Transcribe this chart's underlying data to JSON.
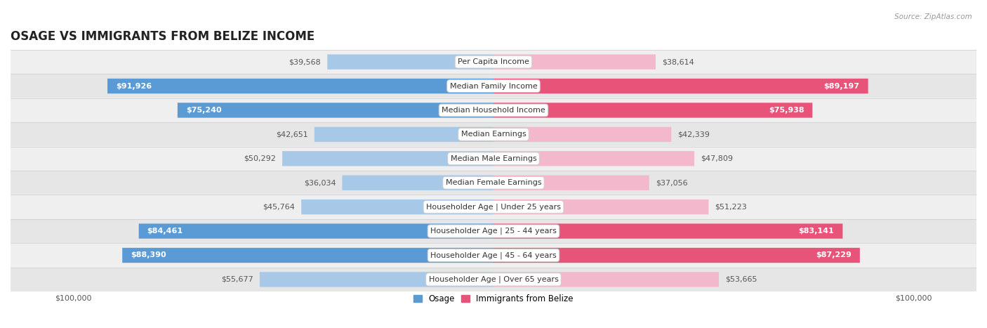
{
  "title": "OSAGE VS IMMIGRANTS FROM BELIZE INCOME",
  "source": "Source: ZipAtlas.com",
  "categories": [
    "Per Capita Income",
    "Median Family Income",
    "Median Household Income",
    "Median Earnings",
    "Median Male Earnings",
    "Median Female Earnings",
    "Householder Age | Under 25 years",
    "Householder Age | 25 - 44 years",
    "Householder Age | 45 - 64 years",
    "Householder Age | Over 65 years"
  ],
  "osage_values": [
    39568,
    91926,
    75240,
    42651,
    50292,
    36034,
    45764,
    84461,
    88390,
    55677
  ],
  "belize_values": [
    38614,
    89197,
    75938,
    42339,
    47809,
    37056,
    51223,
    83141,
    87229,
    53665
  ],
  "max_value": 100000,
  "osage_color_light": "#a8c8e8",
  "osage_color_dark": "#5b9bd5",
  "belize_color_light": "#f4b8cc",
  "belize_color_dark": "#e8537a",
  "bar_height": 0.62,
  "row_bg_odd": "#efefef",
  "row_bg_even": "#e6e6e6",
  "label_color_inside": "#ffffff",
  "label_color_outside": "#555555",
  "title_fontsize": 12,
  "label_fontsize": 8,
  "category_fontsize": 8,
  "legend_fontsize": 8.5,
  "axis_label_fontsize": 8,
  "osage_label": "Osage",
  "belize_label": "Immigrants from Belize",
  "threshold": 0.65
}
